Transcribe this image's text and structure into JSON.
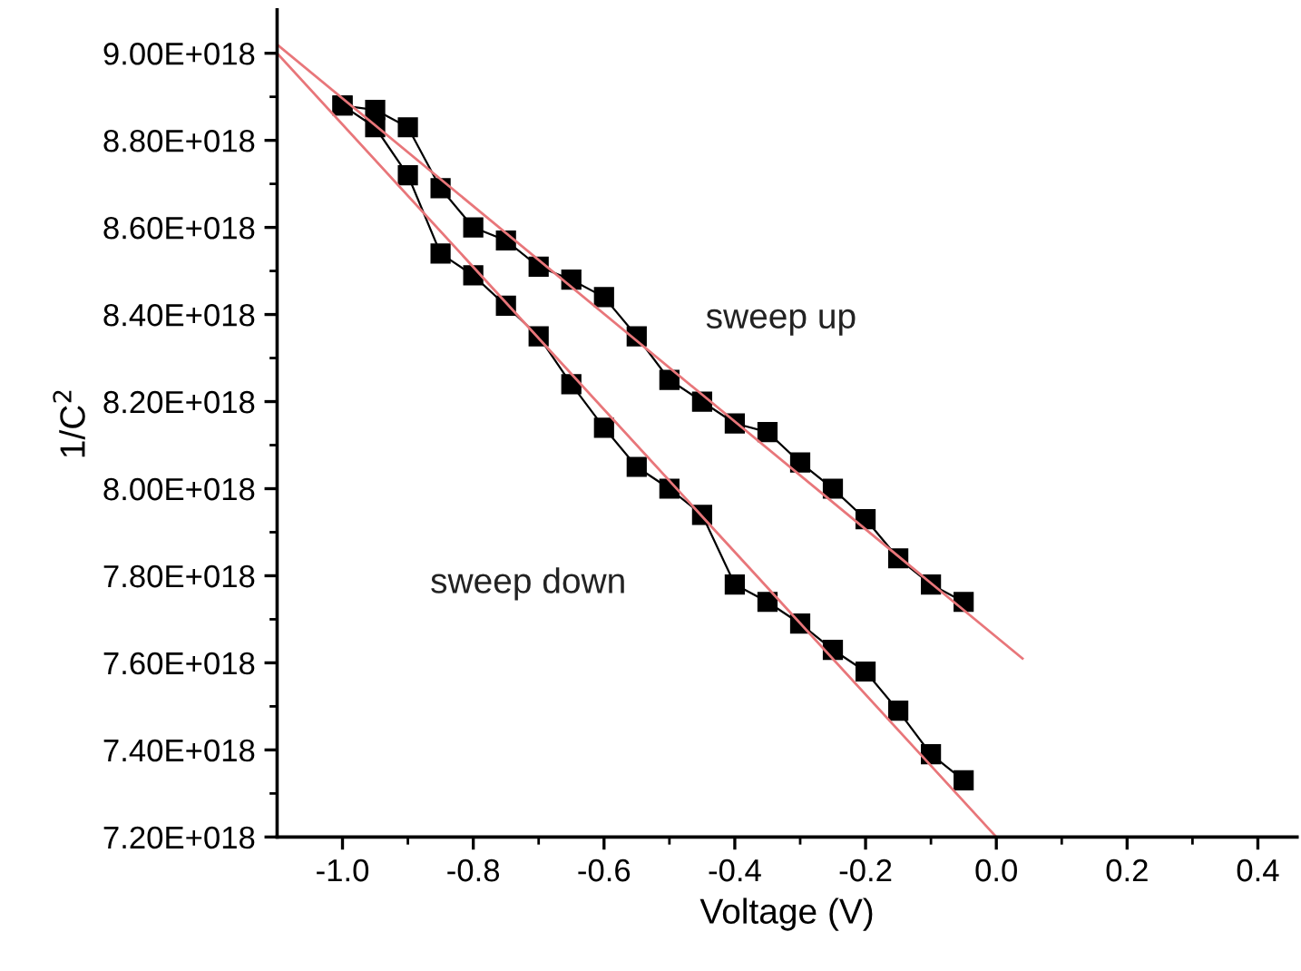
{
  "chart_data": {
    "type": "line",
    "xlabel": "Voltage (V)",
    "ylabel": "1/C$^{2}$",
    "xlim": [
      -1.1,
      0.46
    ],
    "ylim": [
      7.2e+18,
      9.1e+18
    ],
    "xticks": [
      {
        "value": -1,
        "label": "-1.0"
      },
      -0.8,
      -0.6,
      -0.4,
      -0.2,
      {
        "value": 0,
        "label": "0.0"
      },
      0.2,
      0.4
    ],
    "yticks": [
      {
        "value": 7.2e+18,
        "label": "7.20E+018"
      },
      {
        "value": 7.4e+18,
        "label": "7.40E+018"
      },
      {
        "value": 7.6e+18,
        "label": "7.60E+018"
      },
      {
        "value": 7.8e+18,
        "label": "7.80E+018"
      },
      {
        "value": 8e+18,
        "label": "8.00E+018"
      },
      {
        "value": 8.2e+18,
        "label": "8.20E+018"
      },
      {
        "value": 8.4e+18,
        "label": "8.40E+018"
      },
      {
        "value": 8.6e+18,
        "label": "8.60E+018"
      },
      {
        "value": 8.8e+18,
        "label": "8.80E+018"
      },
      {
        "value": 9e+18,
        "label": "9.00E+018"
      }
    ],
    "grid": false,
    "legend": false,
    "series": [
      {
        "name": "sweep up",
        "color": "#000000",
        "marker": "square",
        "x": [
          -1.0,
          -0.95,
          -0.9,
          -0.85,
          -0.8,
          -0.75,
          -0.7,
          -0.65,
          -0.6,
          -0.55,
          -0.5,
          -0.45,
          -0.4,
          -0.35,
          -0.3,
          -0.25,
          -0.2,
          -0.15,
          -0.1,
          -0.05
        ],
        "values": [
          8.88e+18,
          8.87e+18,
          8.83e+18,
          8.69e+18,
          8.6e+18,
          8.57e+18,
          8.51e+18,
          8.48e+18,
          8.44e+18,
          8.35e+18,
          8.25e+18,
          8.2e+18,
          8.15e+18,
          8.13e+18,
          8.06e+18,
          8e+18,
          7.93e+18,
          7.84e+18,
          7.78e+18,
          7.74e+18
        ]
      },
      {
        "name": "sweep down",
        "color": "#000000",
        "marker": "square",
        "x": [
          -1.0,
          -0.95,
          -0.9,
          -0.85,
          -0.8,
          -0.75,
          -0.7,
          -0.65,
          -0.6,
          -0.55,
          -0.5,
          -0.45,
          -0.4,
          -0.35,
          -0.3,
          -0.25,
          -0.2,
          -0.15,
          -0.1,
          -0.05
        ],
        "values": [
          8.88e+18,
          8.83e+18,
          8.72e+18,
          8.54e+18,
          8.49e+18,
          8.42e+18,
          8.35e+18,
          8.24e+18,
          8.14e+18,
          8.05e+18,
          8e+18,
          7.94e+18,
          7.78e+18,
          7.74e+18,
          7.69e+18,
          7.63e+18,
          7.58e+18,
          7.49e+18,
          7.39e+18,
          7.33e+18
        ]
      },
      {
        "color": "#e8767a",
        "marker": "none",
        "x": [
          -1.1,
          0.04
        ],
        "values": [
          9.02e+18,
          7.61e+18
        ]
      },
      {
        "color": "#e8767a",
        "marker": "none",
        "x": [
          -1.1,
          0.0
        ],
        "values": [
          9e+18,
          7.2e+18
        ]
      }
    ]
  }
}
